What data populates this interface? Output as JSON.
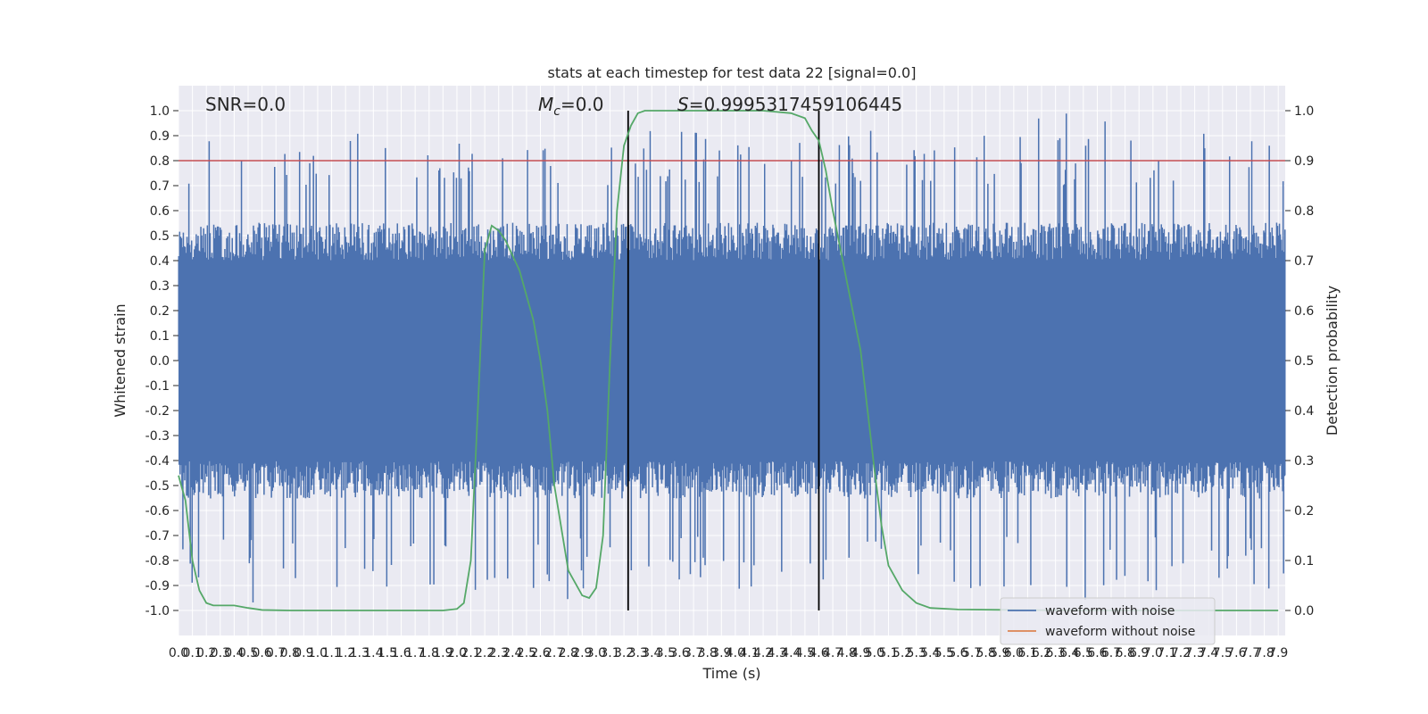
{
  "chart_data": {
    "type": "line",
    "title": "stats at each timestep for test data 22 [signal=0.0]",
    "xlabel": "Time (s)",
    "ylabel": "Whitened strain",
    "y2label": "Detection probability",
    "xlim": [
      0.0,
      7.95
    ],
    "ylim": [
      -1.1,
      1.1
    ],
    "y2lim": [
      -0.05,
      1.05
    ],
    "grid": true,
    "legend_position": "lower-right",
    "x_ticks": [
      "0.0",
      "0.1",
      "0.2",
      "0.3",
      "0.4",
      "0.5",
      "0.6",
      "0.7",
      "0.8",
      "0.9",
      "1.0",
      "1.1",
      "1.2",
      "1.3",
      "1.4",
      "1.5",
      "1.6",
      "1.7",
      "1.8",
      "1.9",
      "2.0",
      "2.1",
      "2.2",
      "2.3",
      "2.4",
      "2.5",
      "2.6",
      "2.7",
      "2.8",
      "2.9",
      "3.0",
      "3.1",
      "3.2",
      "3.3",
      "3.4",
      "3.5",
      "3.6",
      "3.7",
      "3.8",
      "3.9",
      "4.0",
      "4.1",
      "4.2",
      "4.3",
      "4.4",
      "4.5",
      "4.6",
      "4.7",
      "4.8",
      "4.9",
      "5.0",
      "5.1",
      "5.2",
      "5.3",
      "5.4",
      "5.5",
      "5.6",
      "5.7",
      "5.8",
      "5.9",
      "6.0",
      "6.1",
      "6.2",
      "6.3",
      "6.4",
      "6.5",
      "6.6",
      "6.7",
      "6.8",
      "6.9",
      "7.0",
      "7.1",
      "7.2",
      "7.3",
      "7.4",
      "7.5",
      "7.6",
      "7.7",
      "7.8",
      "7.9"
    ],
    "y_ticks": [
      "1.0",
      "0.9",
      "0.8",
      "0.7",
      "0.6",
      "0.5",
      "0.4",
      "0.3",
      "0.2",
      "0.1",
      "0.0",
      "-0.1",
      "-0.2",
      "-0.3",
      "-0.4",
      "-0.5",
      "-0.6",
      "-0.7",
      "-0.8",
      "-0.9",
      "-1.0"
    ],
    "y2_ticks": [
      "1.0",
      "0.9",
      "0.8",
      "0.7",
      "0.6",
      "0.5",
      "0.4",
      "0.3",
      "0.2",
      "0.1",
      "0.0"
    ],
    "annotations": {
      "snr": "SNR=0.0",
      "mc_symbol": "M",
      "mc_sub": "c",
      "mc_value": "=0.0",
      "s_symbol": "S",
      "s_value": "=0.9995317459106445"
    },
    "threshold": 0.8,
    "vlines": [
      3.23,
      4.6
    ],
    "legend": [
      {
        "label": "waveform with noise",
        "color": "#4c72b0"
      },
      {
        "label": "waveform without noise",
        "color": "#dd8452"
      }
    ],
    "series": [
      {
        "name": "waveform with noise",
        "color": "#4c72b0",
        "note_amplitude_envelope": [
          0.4,
          0.55,
          0.7,
          0.92,
          1.0
        ]
      },
      {
        "name": "detection probability",
        "color": "#55a868",
        "x": [
          0.0,
          0.05,
          0.1,
          0.15,
          0.2,
          0.25,
          0.3,
          0.4,
          0.5,
          0.6,
          0.8,
          1.0,
          1.5,
          1.9,
          2.0,
          2.05,
          2.1,
          2.15,
          2.2,
          2.25,
          2.3,
          2.35,
          2.4,
          2.45,
          2.5,
          2.55,
          2.6,
          2.65,
          2.7,
          2.8,
          2.9,
          2.95,
          3.0,
          3.05,
          3.1,
          3.15,
          3.2,
          3.25,
          3.3,
          3.35,
          3.4,
          3.45,
          3.5,
          3.6,
          3.8,
          4.0,
          4.2,
          4.4,
          4.5,
          4.55,
          4.6,
          4.65,
          4.7,
          4.8,
          4.9,
          4.95,
          5.0,
          5.05,
          5.1,
          5.2,
          5.3,
          5.4,
          5.6,
          6.0,
          6.5,
          7.0,
          7.5,
          7.9
        ],
        "y": [
          0.27,
          0.22,
          0.1,
          0.04,
          0.015,
          0.01,
          0.01,
          0.01,
          0.005,
          0.001,
          0.0,
          0.0,
          0.0,
          0.0,
          0.003,
          0.015,
          0.1,
          0.4,
          0.72,
          0.77,
          0.76,
          0.74,
          0.71,
          0.68,
          0.63,
          0.58,
          0.5,
          0.4,
          0.25,
          0.08,
          0.03,
          0.025,
          0.045,
          0.15,
          0.5,
          0.8,
          0.93,
          0.97,
          0.995,
          1.0,
          1.0,
          1.0,
          1.0,
          1.0,
          1.0,
          1.0,
          1.0,
          0.995,
          0.985,
          0.96,
          0.94,
          0.88,
          0.8,
          0.66,
          0.52,
          0.4,
          0.28,
          0.17,
          0.09,
          0.04,
          0.015,
          0.005,
          0.002,
          0.001,
          0.0,
          0.0,
          0.0,
          0.0
        ]
      }
    ]
  }
}
